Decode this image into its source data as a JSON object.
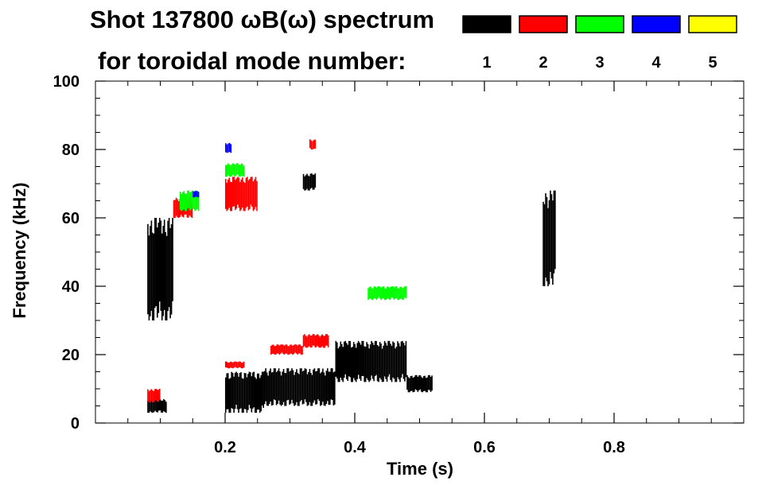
{
  "chart_data": {
    "type": "heatmap",
    "title": "Shot 137800 ωB(ω) spectrum",
    "subtitle": "for toroidal mode number:",
    "xlabel": "Time (s)",
    "ylabel": "Frequency (kHz)",
    "xlim": [
      0.0,
      1.0
    ],
    "ylim": [
      0,
      100
    ],
    "x_ticks": [
      "0.2",
      "0.4",
      "0.6",
      "0.8"
    ],
    "x_tick_values": [
      0.2,
      0.4,
      0.6,
      0.8
    ],
    "y_ticks": [
      "0",
      "20",
      "40",
      "60",
      "80",
      "100"
    ],
    "y_tick_values": [
      0,
      20,
      40,
      60,
      80,
      100
    ],
    "grid": false,
    "legend": {
      "placement": "top-right",
      "entries": [
        {
          "label": "1",
          "color": "#000000"
        },
        {
          "label": "2",
          "color": "#ff0000"
        },
        {
          "label": "3",
          "color": "#00ff00"
        },
        {
          "label": "4",
          "color": "#0000ff"
        },
        {
          "label": "5",
          "color": "#ffff00"
        }
      ]
    },
    "series": [
      {
        "mode": "1",
        "color": "#000000",
        "regions": [
          {
            "t": [
              0.08,
              0.12
            ],
            "f": [
              30,
              60
            ]
          },
          {
            "t": [
              0.08,
              0.11
            ],
            "f": [
              3,
              7
            ]
          },
          {
            "t": [
              0.2,
              0.26
            ],
            "f": [
              3,
              15
            ]
          },
          {
            "t": [
              0.26,
              0.37
            ],
            "f": [
              5,
              16
            ]
          },
          {
            "t": [
              0.37,
              0.48
            ],
            "f": [
              12,
              24
            ]
          },
          {
            "t": [
              0.48,
              0.52
            ],
            "f": [
              9,
              14
            ]
          },
          {
            "t": [
              0.32,
              0.34
            ],
            "f": [
              68,
              73
            ]
          },
          {
            "t": [
              0.69,
              0.71
            ],
            "f": [
              40,
              68
            ]
          }
        ]
      },
      {
        "mode": "2",
        "color": "#ff0000",
        "regions": [
          {
            "t": [
              0.2,
              0.25
            ],
            "f": [
              62,
              72
            ]
          },
          {
            "t": [
              0.12,
              0.15
            ],
            "f": [
              60,
              66
            ]
          },
          {
            "t": [
              0.27,
              0.32
            ],
            "f": [
              20,
              23
            ]
          },
          {
            "t": [
              0.32,
              0.36
            ],
            "f": [
              22,
              26
            ]
          },
          {
            "t": [
              0.2,
              0.23
            ],
            "f": [
              16,
              18
            ]
          },
          {
            "t": [
              0.33,
              0.34
            ],
            "f": [
              80,
              83
            ]
          },
          {
            "t": [
              0.08,
              0.1
            ],
            "f": [
              6,
              10
            ]
          }
        ]
      },
      {
        "mode": "3",
        "color": "#00ff00",
        "regions": [
          {
            "t": [
              0.13,
              0.16
            ],
            "f": [
              62,
              68
            ]
          },
          {
            "t": [
              0.2,
              0.23
            ],
            "f": [
              72,
              76
            ]
          },
          {
            "t": [
              0.42,
              0.48
            ],
            "f": [
              36,
              40
            ]
          }
        ]
      },
      {
        "mode": "4",
        "color": "#0000ff",
        "regions": [
          {
            "t": [
              0.2,
              0.21
            ],
            "f": [
              79,
              82
            ]
          },
          {
            "t": [
              0.15,
              0.16
            ],
            "f": [
              66,
              68
            ]
          }
        ]
      },
      {
        "mode": "5",
        "color": "#ffff00",
        "regions": []
      }
    ]
  }
}
